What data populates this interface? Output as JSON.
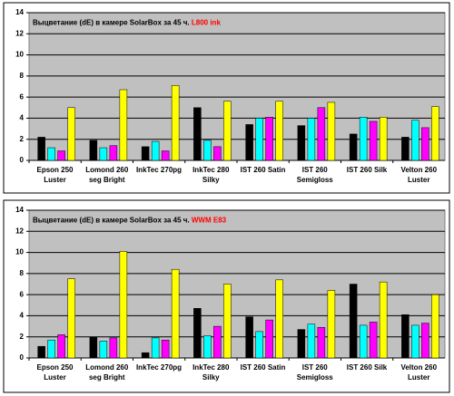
{
  "chart_data": [
    {
      "type": "bar",
      "title": "Выцветание (dE) в камере SolarBox за 45 ч.",
      "title_highlight": "L800 ink",
      "categories": [
        "Epson 250\nLuster",
        "Lomond 260\nseg Bright",
        "InkTec 270pg",
        "InkTec 280\nSilky",
        "IST 260 Satin",
        "IST 260\nSemigloss",
        "IST 260 Silk",
        "Velton 260\nLuster"
      ],
      "series": [
        {
          "color": "#000000",
          "values": [
            2.2,
            1.9,
            1.3,
            5.0,
            3.4,
            3.3,
            2.5,
            2.2
          ]
        },
        {
          "color": "#00ffff",
          "values": [
            1.2,
            1.2,
            1.8,
            1.9,
            4.0,
            4.0,
            4.1,
            3.8
          ]
        },
        {
          "color": "#ff00ff",
          "values": [
            0.9,
            1.4,
            0.9,
            1.3,
            4.1,
            5.0,
            3.7,
            3.1
          ]
        },
        {
          "color": "#ffff00",
          "values": [
            5.0,
            6.7,
            7.1,
            5.6,
            5.6,
            5.5,
            4.1,
            5.1
          ]
        }
      ],
      "ylim": [
        0,
        14
      ],
      "yticks": [
        0,
        2,
        4,
        6,
        8,
        10,
        12,
        14
      ],
      "grid": true
    },
    {
      "type": "bar",
      "title": "Выцветание (dE) в камере SolarBox за 45 ч.",
      "title_highlight": "WWM E83",
      "categories": [
        "Epson 250\nLuster",
        "Lomond 260\nseg Bright",
        "InkTec 270pg",
        "InkTec 280\nSilky",
        "IST 260 Satin",
        "IST 260\nSemigloss",
        "IST 260 Silk",
        "Velton 260\nLuster"
      ],
      "series": [
        {
          "color": "#000000",
          "values": [
            1.1,
            2.0,
            0.5,
            4.7,
            3.9,
            2.7,
            7.0,
            4.1
          ]
        },
        {
          "color": "#00ffff",
          "values": [
            1.7,
            1.6,
            1.9,
            2.1,
            2.5,
            3.2,
            3.1,
            3.1
          ]
        },
        {
          "color": "#ff00ff",
          "values": [
            2.2,
            1.9,
            1.7,
            3.0,
            3.6,
            2.9,
            3.4,
            3.3
          ]
        },
        {
          "color": "#ffff00",
          "values": [
            7.5,
            10.1,
            8.4,
            7.0,
            7.4,
            6.4,
            7.2,
            6.0
          ]
        }
      ],
      "ylim": [
        0,
        14
      ],
      "yticks": [
        0,
        2,
        4,
        6,
        8,
        10,
        12,
        14
      ],
      "grid": true
    }
  ]
}
